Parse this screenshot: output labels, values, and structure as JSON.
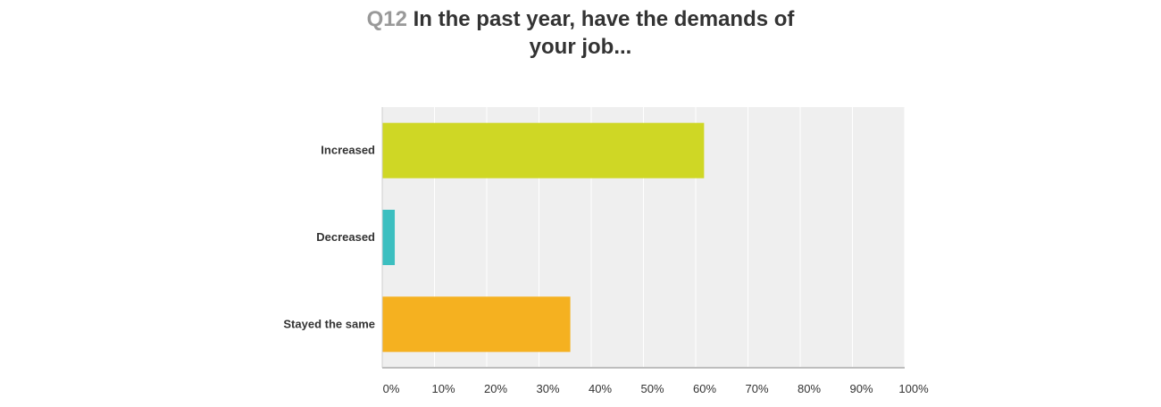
{
  "header": {
    "question_number": "Q12",
    "title_line1": "In the past year, have the demands of",
    "title_line2": "your job..."
  },
  "chart_data": {
    "type": "bar",
    "orientation": "horizontal",
    "title": "Q12 In the past year, have the demands of your job...",
    "categories": [
      "Increased",
      "Decreased",
      "Stayed the same"
    ],
    "values": [
      61.6,
      2.4,
      36.0
    ],
    "colors": [
      "#cfd725",
      "#3cbfc0",
      "#f5b120"
    ],
    "xlim": [
      0,
      100
    ],
    "x_ticks": [
      "0%",
      "10%",
      "20%",
      "30%",
      "40%",
      "50%",
      "60%",
      "70%",
      "80%",
      "90%",
      "100%"
    ],
    "xlabel": "",
    "ylabel": "",
    "grid": true,
    "plot_background": "#efefef",
    "gridline_color": "#ffffff"
  }
}
